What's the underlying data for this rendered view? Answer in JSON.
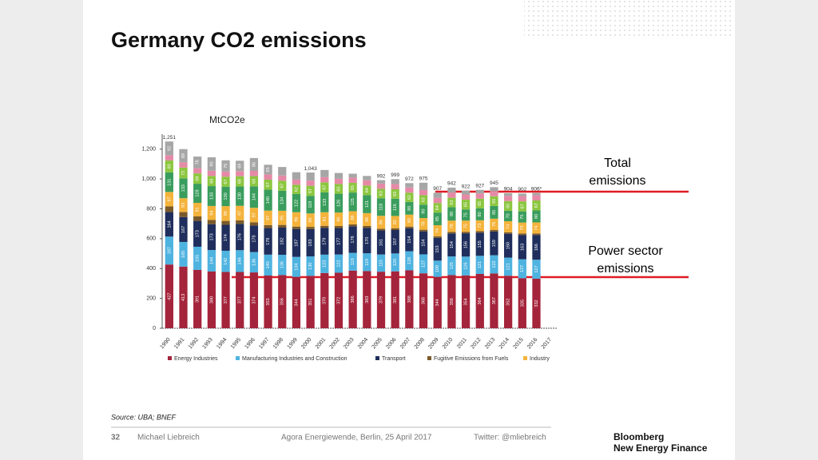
{
  "slide": {
    "title": "Germany CO2 emissions",
    "source": "Source: UBA; BNEF",
    "footer": {
      "page": "32",
      "author": "Michael Liebreich",
      "event": "Agora Energiewende, Berlin, 25 April 2017",
      "twitter": "Twitter: @mliebreich"
    },
    "logo": [
      "Bloomberg",
      "New Energy Finance"
    ]
  },
  "chart_data": {
    "type": "stacked_bar",
    "unit_label": "MtCO2e",
    "categories": [
      "1990",
      "1991",
      "1992",
      "1993",
      "1994",
      "1995",
      "1996",
      "1997",
      "1998",
      "1999",
      "2000",
      "2001",
      "2002",
      "2003",
      "2004",
      "2005",
      "2006",
      "2007",
      "2008",
      "2009",
      "2010",
      "2011",
      "2012",
      "2013",
      "2014",
      "2015",
      "2016",
      "2017"
    ],
    "series": [
      {
        "name": "Energy Industries",
        "color": "#a4243b",
        "values": [
          427,
          413,
          391,
          380,
          377,
          377,
          374,
          353,
          356,
          344,
          351,
          370,
          372,
          386,
          383,
          379,
          381,
          388,
          368,
          344,
          356,
          354,
          364,
          367,
          352,
          335,
          332,
          null
        ]
      },
      {
        "name": "Manufacturing Industries and Construction",
        "color": "#4fb3e0",
        "values": [
          187,
          165,
          155,
          144,
          142,
          146,
          136,
          140,
          136,
          134,
          130,
          123,
          122,
          119,
          119,
          115,
          120,
          128,
          127,
          109,
          125,
          126,
          121,
          122,
          121,
          127,
          127,
          null
        ]
      },
      {
        "name": "Transport",
        "color": "#1f2e5c",
        "values": [
          164,
          167,
          173,
          173,
          174,
          176,
          178,
          178,
          182,
          187,
          183,
          179,
          177,
          178,
          170,
          161,
          157,
          154,
          154,
          153,
          154,
          156,
          155,
          159,
          160,
          163,
          166,
          null
        ]
      },
      {
        "name": "Fugitive Emissions from Fuels",
        "color": "#7a5a2a",
        "values": [
          38,
          33,
          30,
          28,
          26,
          24,
          22,
          20,
          18,
          16,
          15,
          14,
          14,
          13,
          13,
          12,
          12,
          11,
          11,
          10,
          10,
          10,
          10,
          10,
          10,
          10,
          10,
          null
        ]
      },
      {
        "name": "Industry",
        "color": "#f4b33b",
        "values": [
          97,
          93,
          91,
          94,
          99,
          97,
          97,
          97,
          95,
          96,
          90,
          91,
          90,
          88,
          86,
          86,
          82,
          80,
          78,
          74,
          76,
          75,
          73,
          76,
          74,
          73,
          74,
          null
        ]
      },
      {
        "color": "#3a9d5d",
        "values": [
          131,
          133,
          128,
          133,
          130,
          130,
          144,
          140,
          134,
          122,
          118,
          133,
          126,
          125,
          121,
          118,
          116,
          85,
          90,
          85,
          90,
          75,
          80,
          85,
          70,
          75,
          80,
          null
        ]
      },
      {
        "color": "#8cc63f",
        "values": [
          80,
          72,
          69,
          68,
          67,
          68,
          68,
          67,
          67,
          62,
          67,
          67,
          65,
          65,
          64,
          63,
          63,
          62,
          63,
          64,
          63,
          65,
          65,
          65,
          65,
          67,
          67,
          null
        ]
      },
      {
        "color": "#e58aa6",
        "values": [
          35,
          35,
          35,
          35,
          35,
          35,
          35,
          35,
          35,
          35,
          35,
          35,
          35,
          35,
          35,
          35,
          35,
          35,
          35,
          35,
          35,
          35,
          35,
          35,
          35,
          35,
          35,
          null
        ]
      },
      {
        "color": "#a6a6a6",
        "values": [
          92,
          89,
          78,
          90,
          75,
          69,
          86,
          65,
          57,
          49,
          54,
          48,
          39,
          26,
          29,
          23,
          33,
          29,
          49,
          33,
          33,
          26,
          24,
          26,
          17,
          17,
          15,
          null
        ]
      }
    ],
    "totals": {
      "values": [
        1251,
        null,
        null,
        null,
        null,
        null,
        null,
        null,
        null,
        null,
        1043,
        null,
        null,
        null,
        null,
        992,
        999,
        972,
        975,
        907,
        942,
        922,
        927,
        945,
        904,
        902,
        906,
        null
      ],
      "value_labels": [
        "1,251",
        null,
        null,
        null,
        null,
        null,
        null,
        null,
        null,
        null,
        "1,043",
        null,
        null,
        null,
        null,
        "992",
        "999",
        "972",
        "975",
        "907",
        "942",
        "922",
        "927",
        "945",
        "904",
        "902",
        "906*",
        null
      ]
    },
    "ylim": [
      0,
      1300
    ],
    "yticks": [
      0,
      200,
      400,
      600,
      800,
      {
        "value": 1000,
        "label": "1,000"
      },
      {
        "value": 1200,
        "label": "1,200"
      }
    ],
    "annotations": [
      [
        "Total",
        "emissions"
      ],
      [
        "Power sector",
        "emissions"
      ]
    ]
  }
}
